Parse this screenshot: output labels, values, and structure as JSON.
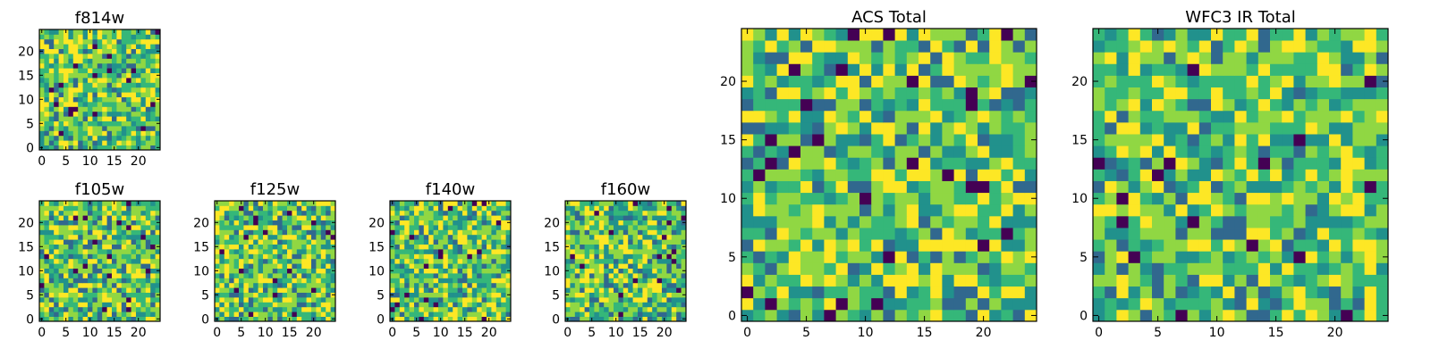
{
  "chart_data": [
    {
      "type": "heatmap",
      "title": "f814w",
      "xlabel": "",
      "ylabel": "",
      "grid": false,
      "xlim": [
        0,
        25
      ],
      "ylim": [
        0,
        25
      ],
      "xticks": [
        0,
        5,
        10,
        15,
        20
      ],
      "yticks": [
        0,
        5,
        10,
        15,
        20
      ],
      "size": 25,
      "seed": 11,
      "colormap": [
        "#440154",
        "#31688e",
        "#21918c",
        "#35b779",
        "#90d743",
        "#fde725"
      ]
    },
    {
      "type": "heatmap",
      "title": "f105w",
      "xlabel": "",
      "ylabel": "",
      "grid": false,
      "xlim": [
        0,
        25
      ],
      "ylim": [
        0,
        25
      ],
      "xticks": [
        0,
        5,
        10,
        15,
        20
      ],
      "yticks": [
        0,
        5,
        10,
        15,
        20
      ],
      "size": 25,
      "seed": 23,
      "colormap": [
        "#440154",
        "#31688e",
        "#21918c",
        "#35b779",
        "#90d743",
        "#fde725"
      ]
    },
    {
      "type": "heatmap",
      "title": "f125w",
      "xlabel": "",
      "ylabel": "",
      "grid": false,
      "xlim": [
        0,
        25
      ],
      "ylim": [
        0,
        25
      ],
      "xticks": [
        0,
        5,
        10,
        15,
        20
      ],
      "yticks": [
        0,
        5,
        10,
        15,
        20
      ],
      "size": 25,
      "seed": 37,
      "colormap": [
        "#440154",
        "#31688e",
        "#21918c",
        "#35b779",
        "#90d743",
        "#fde725"
      ]
    },
    {
      "type": "heatmap",
      "title": "f140w",
      "xlabel": "",
      "ylabel": "",
      "grid": false,
      "xlim": [
        0,
        25
      ],
      "ylim": [
        0,
        25
      ],
      "xticks": [
        0,
        5,
        10,
        15,
        20
      ],
      "yticks": [
        0,
        5,
        10,
        15,
        20
      ],
      "size": 25,
      "seed": 41,
      "colormap": [
        "#440154",
        "#31688e",
        "#21918c",
        "#35b779",
        "#90d743",
        "#fde725"
      ]
    },
    {
      "type": "heatmap",
      "title": "f160w",
      "xlabel": "",
      "ylabel": "",
      "grid": false,
      "xlim": [
        0,
        25
      ],
      "ylim": [
        0,
        25
      ],
      "xticks": [
        0,
        5,
        10,
        15,
        20
      ],
      "yticks": [
        0,
        5,
        10,
        15,
        20
      ],
      "size": 25,
      "seed": 53,
      "colormap": [
        "#440154",
        "#31688e",
        "#21918c",
        "#35b779",
        "#90d743",
        "#fde725"
      ]
    },
    {
      "type": "heatmap",
      "title": "ACS Total",
      "xlabel": "",
      "ylabel": "",
      "grid": false,
      "xlim": [
        0,
        25
      ],
      "ylim": [
        0,
        25
      ],
      "xticks": [
        0,
        5,
        10,
        15,
        20
      ],
      "yticks": [
        0,
        5,
        10,
        15,
        20
      ],
      "size": 25,
      "seed": 67,
      "colormap": [
        "#440154",
        "#31688e",
        "#21918c",
        "#35b779",
        "#90d743",
        "#fde725"
      ]
    },
    {
      "type": "heatmap",
      "title": "WFC3 IR Total",
      "xlabel": "",
      "ylabel": "",
      "grid": false,
      "xlim": [
        0,
        25
      ],
      "ylim": [
        0,
        25
      ],
      "xticks": [
        0,
        5,
        10,
        15,
        20
      ],
      "yticks": [
        0,
        5,
        10,
        15,
        20
      ],
      "size": 25,
      "seed": 79,
      "colormap": [
        "#440154",
        "#31688e",
        "#21918c",
        "#35b779",
        "#90d743",
        "#fde725"
      ]
    }
  ]
}
